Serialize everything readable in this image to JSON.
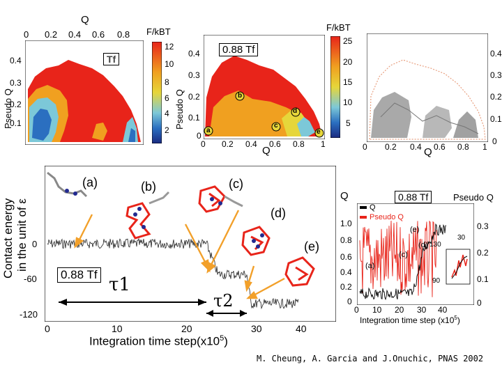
{
  "panel_top_left": {
    "top_axis_label": "Q",
    "top_ticks": [
      "0",
      "0.2",
      "0.4",
      "0.6",
      "0.8"
    ],
    "y_label": "Pseudo Q",
    "y_ticks": [
      "0.4",
      "0.3",
      "0.2",
      "0.1"
    ],
    "temp_label": "Tf",
    "colorbar_title": "F/kBT",
    "colorbar_ticks": [
      "12",
      "10",
      "8",
      "6",
      "4",
      "2"
    ]
  },
  "panel_top_middle": {
    "temp_label": "0.88 Tf",
    "y_label": "Pseudo Q",
    "y_ticks": [
      "0.4",
      "0.3",
      "0.2",
      "0.1",
      "0"
    ],
    "x_label": "Q",
    "x_ticks": [
      "0",
      "0.2",
      "0.4",
      "0.6",
      "0.8",
      "1"
    ],
    "colorbar_title": "F/kBT",
    "colorbar_ticks": [
      "25",
      "20",
      "15",
      "10",
      "5"
    ],
    "markers": [
      "a",
      "b",
      "c",
      "d",
      "e"
    ]
  },
  "panel_top_right": {
    "x_label": "Q",
    "x_ticks": [
      "0",
      "0.2",
      "0.4",
      "0.6",
      "0.8",
      "1"
    ],
    "y_ticks": [
      "0.4",
      "0.3",
      "0.2",
      "0.1",
      "0"
    ]
  },
  "panel_main": {
    "y_label_line1": "Contact energy",
    "y_label_line2": "in the unit of ε",
    "y_ticks": [
      "0",
      "-60",
      "-120"
    ],
    "x_ticks": [
      "0",
      "10",
      "20",
      "30",
      "40"
    ],
    "x_label": "Integration time step(x10",
    "x_label_exp": "5",
    "x_label_close": ")",
    "temp_label": "0.88 Tf",
    "tau1": "τ1",
    "tau2": "τ2",
    "snapshots": [
      "(a)",
      "(b)",
      "(c)",
      "(d)",
      "(e)"
    ]
  },
  "panel_bottom_right": {
    "temp_label": "0.88 Tf",
    "left_axis_title": "Q",
    "right_axis_title": "Pseudo Q",
    "legend": [
      "Q",
      "Pseudo Q"
    ],
    "left_ticks": [
      "1.0",
      "0.8",
      "0.6",
      "0.4",
      "0.2",
      "0"
    ],
    "right_ticks": [
      "0.3",
      "0.2",
      "0.1",
      "0"
    ],
    "x_ticks": [
      "0",
      "10",
      "20",
      "30",
      "40"
    ],
    "x_label": "Integration time step (x10",
    "x_label_exp": "5",
    "x_label_close": ")",
    "inset_ticks": [
      "130",
      "90",
      "30"
    ],
    "markers": [
      "(e)",
      "(d)",
      "(c)",
      "(a)"
    ]
  },
  "credit": "M. Cheung, A. Garcia and J.Onuchic, PNAS 2002",
  "colors": {
    "red": "#e8241a",
    "orange": "#f0a020",
    "yellow": "#e6d63a",
    "cyan": "#7cc8d8",
    "blue": "#2b6fc0",
    "navy": "#1a2a80",
    "gray_trace": "#888888",
    "arrow": "#f2a02a"
  }
}
